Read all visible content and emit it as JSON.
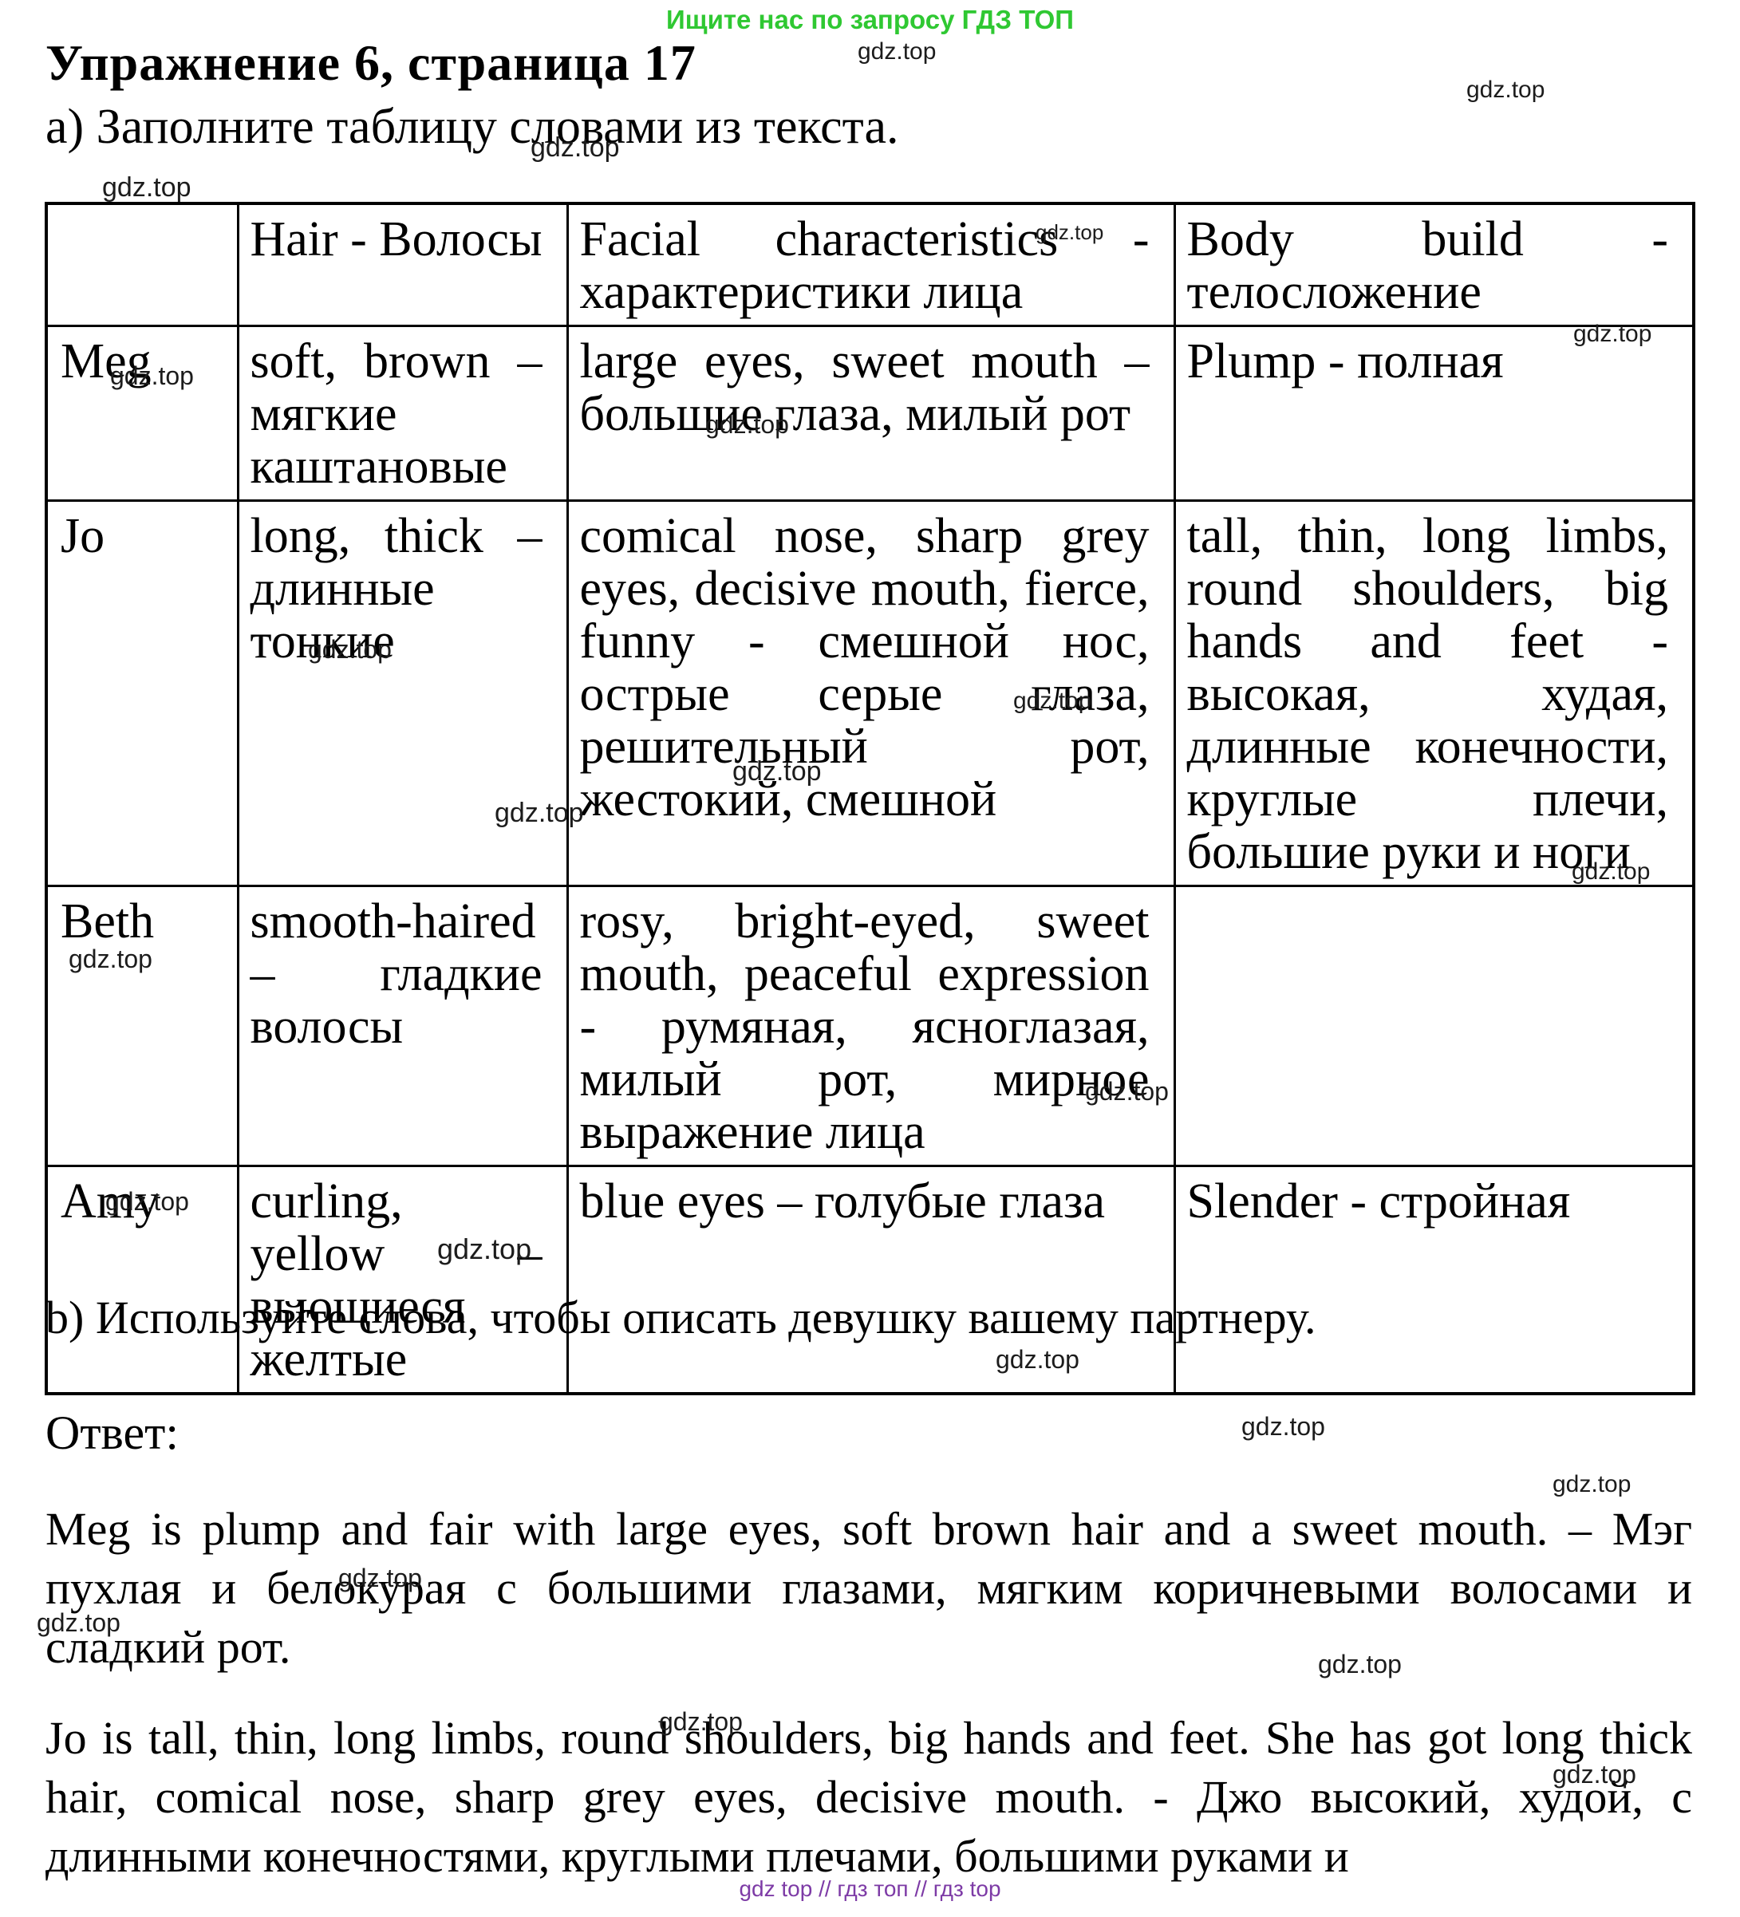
{
  "page": {
    "top_banner": "Ищите нас по запросу ГДЗ ТОП",
    "title": "Упражнение 6, страница 17",
    "subtitle_a": "а) Заполните таблицу словами из текста.",
    "task_b": "b) Используйте слова, чтобы описать девушку вашему партнеру.",
    "answer_label": "Ответ:",
    "footer": "gdz top  //  гдз топ  //  гдз top"
  },
  "colors": {
    "banner_green": "#2fc832",
    "footer_purple": "#7d3ba6",
    "text_black": "#000000"
  },
  "table": {
    "headers": [
      "",
      "Hair - Волосы",
      "Facial characteristics - характеристики лица",
      "Body build - телосложение"
    ],
    "rows": [
      {
        "name": "Meg",
        "hair": "soft, brown – мягкие каштановые",
        "facial": "large eyes, sweet mouth – большие глаза, милый рот",
        "body": "Plump - полная"
      },
      {
        "name": "Jo",
        "hair": "long, thick – длинные тонкие",
        "facial": "comical nose, sharp grey eyes, decisive mouth, fierce, funny - смешной нос, острые серые глаза, решительный рот, жестокий, смешной",
        "body": "tall, thin, long limbs, round shoulders, big hands and feet - высокая, худая, длинные конечности, круглые плечи, большие руки и ноги"
      },
      {
        "name": "Beth",
        "hair": "smooth-haired – гладкие волосы",
        "facial": "rosy, bright-eyed, sweet mouth, peaceful expression - румяная, ясноглазая, милый рот, мирное выражение лица",
        "body": ""
      },
      {
        "name": "Amy",
        "hair": "curling, yellow – вьющиеся желтые",
        "facial": "blue eyes – голубые глаза",
        "body": "Slender - стройная"
      }
    ]
  },
  "answer": {
    "paragraphs": [
      "Meg is plump and fair with large eyes, soft brown hair and a sweet mouth. – Мэг пухлая и белокурая с большими глазами, мягким коричневыми волосами и сладкий рот.",
      "Jo is tall, thin, long limbs, round shoulders, big hands and feet. She has got long thick hair, comical nose, sharp grey eyes, decisive mouth. - Джо высокий, худой, с длинными конечностями, круглыми плечами, большими руками и"
    ]
  },
  "watermark": {
    "label": "gdz.top",
    "positions": [
      [
        1075,
        50,
        30
      ],
      [
        1838,
        98,
        30
      ],
      [
        665,
        168,
        34
      ],
      [
        128,
        218,
        34
      ],
      [
        1298,
        278,
        26
      ],
      [
        1972,
        404,
        30
      ],
      [
        138,
        455,
        32
      ],
      [
        884,
        516,
        32
      ],
      [
        386,
        798,
        32
      ],
      [
        1270,
        864,
        30
      ],
      [
        918,
        950,
        34
      ],
      [
        620,
        1002,
        34
      ],
      [
        1970,
        1078,
        30
      ],
      [
        86,
        1186,
        32
      ],
      [
        1360,
        1352,
        32
      ],
      [
        132,
        1490,
        32
      ],
      [
        548,
        1548,
        36
      ],
      [
        1248,
        1688,
        32
      ],
      [
        1556,
        1772,
        32
      ],
      [
        1946,
        1846,
        30
      ],
      [
        424,
        1962,
        32
      ],
      [
        46,
        2018,
        32
      ],
      [
        1652,
        2070,
        32
      ],
      [
        826,
        2142,
        32
      ],
      [
        1946,
        2208,
        32
      ]
    ]
  }
}
